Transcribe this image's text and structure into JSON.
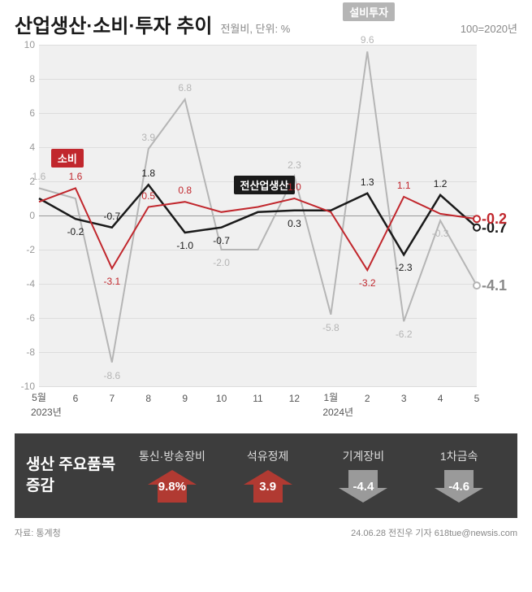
{
  "header": {
    "title": "산업생산·소비·투자 추이",
    "subtitle": "전월비, 단위: %",
    "baseline": "100=2020년"
  },
  "chart": {
    "type": "line",
    "ylim": [
      -10,
      10
    ],
    "yticks": [
      -10,
      -8,
      -6,
      -4,
      -2,
      0,
      2,
      4,
      6,
      8,
      10
    ],
    "x_labels": [
      "5월",
      "6",
      "7",
      "8",
      "9",
      "10",
      "11",
      "12",
      "1월",
      "2",
      "3",
      "4",
      "5"
    ],
    "x_years": [
      {
        "label": "2023년",
        "under_idx": 0
      },
      {
        "label": "2024년",
        "under_idx": 8
      }
    ],
    "bg_color": "#f0f0f0",
    "grid_color": "#dddddd",
    "zero_color": "#999999",
    "series": [
      {
        "name": "설비투자",
        "color": "#b5b5b5",
        "width": 2,
        "values": [
          1.6,
          1.0,
          -8.6,
          3.9,
          6.8,
          -2.0,
          -2.0,
          2.3,
          -5.8,
          9.6,
          -6.2,
          -0.3,
          -4.1
        ],
        "tag": {
          "text": "설비투자",
          "bg": "#b5b5b5",
          "fg": "#ffffff",
          "at_idx": 9,
          "dy": -60
        },
        "value_labels": [
          {
            "i": 0,
            "v": "1.6",
            "dy": -14
          },
          {
            "i": 2,
            "v": "-8.6",
            "dy": 16
          },
          {
            "i": 3,
            "v": "3.9",
            "dy": -14
          },
          {
            "i": 4,
            "v": "6.8",
            "dy": -14
          },
          {
            "i": 5,
            "v": "-2.0",
            "dy": 16
          },
          {
            "i": 7,
            "v": "2.3",
            "dy": -14
          },
          {
            "i": 8,
            "v": "-5.8",
            "dy": 16
          },
          {
            "i": 9,
            "v": "9.6",
            "dy": -14
          },
          {
            "i": 10,
            "v": "-6.2",
            "dy": 16
          },
          {
            "i": 11,
            "v": "-0.3",
            "dy": 16
          }
        ],
        "end_label": {
          "text": "-4.1",
          "color": "#8a8a8a"
        }
      },
      {
        "name": "전산업생산",
        "color": "#1a1a1a",
        "width": 2.5,
        "values": [
          1.0,
          -0.2,
          -0.7,
          1.8,
          -1.0,
          -0.7,
          0.2,
          0.3,
          0.3,
          1.3,
          -2.3,
          1.2,
          -0.7
        ],
        "tag": {
          "text": "전산업생산",
          "bg": "#1a1a1a",
          "fg": "#ffffff",
          "at_idx": 6,
          "dy": -45
        },
        "value_labels": [
          {
            "i": 1,
            "v": "-0.2",
            "dy": 16
          },
          {
            "i": 2,
            "v": "-0.7",
            "dy": -14
          },
          {
            "i": 3,
            "v": "1.8",
            "dy": -14
          },
          {
            "i": 4,
            "v": "-1.0",
            "dy": 16
          },
          {
            "i": 5,
            "v": "-0.7",
            "dy": 16
          },
          {
            "i": 7,
            "v": "0.3",
            "dy": 16
          },
          {
            "i": 9,
            "v": "1.3",
            "dy": -14
          },
          {
            "i": 10,
            "v": "-2.3",
            "dy": 16
          },
          {
            "i": 11,
            "v": "1.2",
            "dy": -14
          }
        ],
        "end_label": {
          "text": "-0.7",
          "color": "#1a1a1a"
        }
      },
      {
        "name": "소비",
        "color": "#c1272d",
        "width": 2,
        "values": [
          0.8,
          1.6,
          -3.1,
          0.5,
          0.8,
          0.2,
          0.5,
          1.0,
          0.2,
          -3.2,
          1.1,
          0.1,
          -0.2
        ],
        "tag": {
          "text": "소비",
          "bg": "#c1272d",
          "fg": "#ffffff",
          "at_idx": 1,
          "dy": -48
        },
        "value_labels": [
          {
            "i": 1,
            "v": "1.6",
            "dy": -14
          },
          {
            "i": 2,
            "v": "-3.1",
            "dy": 16
          },
          {
            "i": 3,
            "v": "0.5",
            "dy": -14
          },
          {
            "i": 4,
            "v": "0.8",
            "dy": -14
          },
          {
            "i": 7,
            "v": "1.0",
            "dy": -14
          },
          {
            "i": 9,
            "v": "-3.2",
            "dy": 16
          },
          {
            "i": 10,
            "v": "1.1",
            "dy": -14
          }
        ],
        "end_label": {
          "text": "-0.2",
          "color": "#c1272d"
        }
      }
    ]
  },
  "bottom": {
    "title_l1": "생산 주요품목",
    "title_l2": "증감",
    "items": [
      {
        "label": "통신·방송장비",
        "value": "9.8%",
        "dir": "up",
        "color": "#b13a32",
        "text_color": "#ffffff"
      },
      {
        "label": "석유정제",
        "value": "3.9",
        "dir": "up",
        "color": "#b13a32",
        "text_color": "#ffffff"
      },
      {
        "label": "기계장비",
        "value": "-4.4",
        "dir": "down",
        "color": "#9a9a9a",
        "text_color": "#ffffff"
      },
      {
        "label": "1차금속",
        "value": "-4.6",
        "dir": "down",
        "color": "#9a9a9a",
        "text_color": "#ffffff"
      }
    ]
  },
  "footer": {
    "source_label": "자료:",
    "source": "통계청",
    "credit": "24.06.28 전진우 기자 618tue@newsis.com"
  }
}
